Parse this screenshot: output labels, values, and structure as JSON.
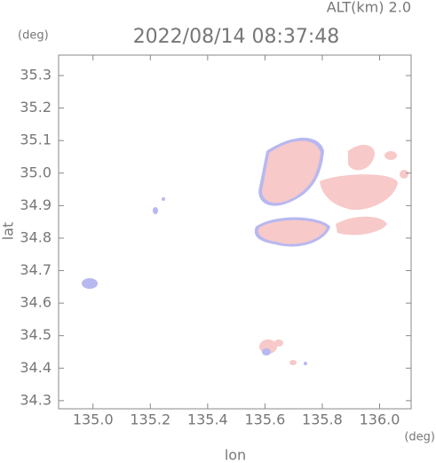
{
  "chart_data": {
    "type": "map",
    "title": "2022/08/14 08:37:48",
    "subtitle": "ALT(km) 2.0",
    "y_unit": "(deg)",
    "x_unit": "(deg)",
    "x_label": "lon",
    "y_label": "lat",
    "xlim": [
      134.88,
      136.11
    ],
    "ylim": [
      34.275,
      35.363
    ],
    "xticks": [
      {
        "value": 135,
        "label": "135.0"
      },
      135.2,
      135.4,
      135.6,
      135.8,
      {
        "value": 136,
        "label": "136.0"
      }
    ],
    "yticks": [
      34.3,
      34.4,
      34.5,
      34.6,
      34.7,
      34.8,
      34.9,
      {
        "value": 35,
        "label": "35.0"
      },
      35.1,
      35.2,
      35.3
    ]
  }
}
